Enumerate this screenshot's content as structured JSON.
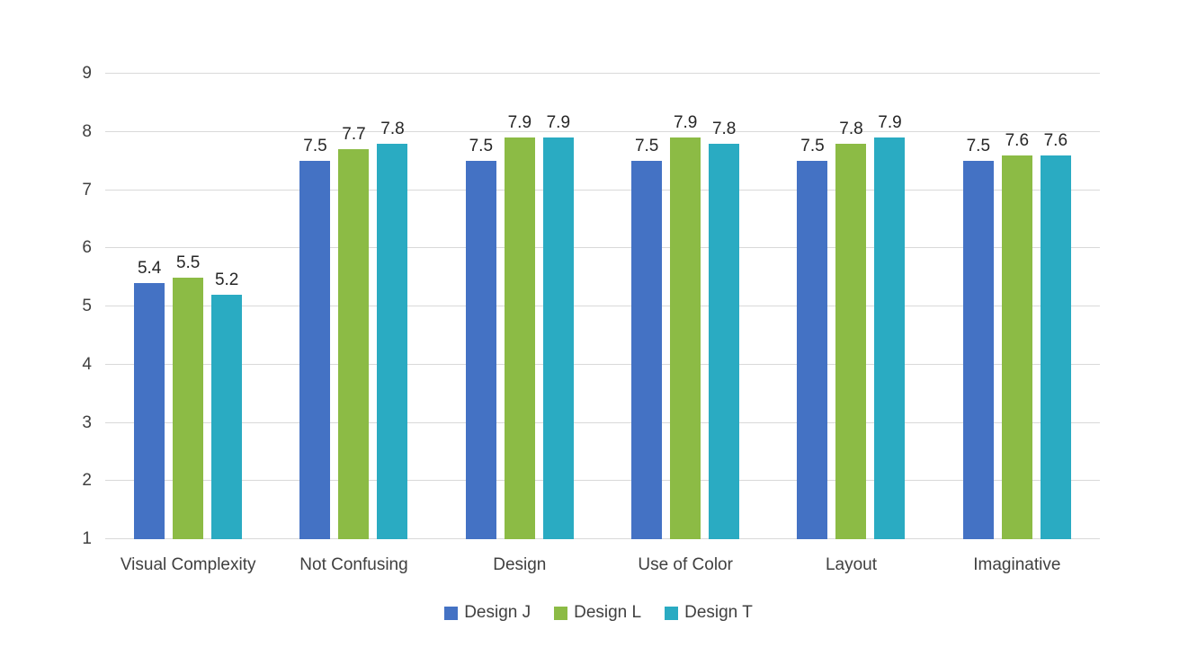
{
  "chart_data": {
    "type": "bar",
    "title": "",
    "xlabel": "",
    "ylabel": "",
    "categories": [
      "Visual Complexity",
      "Not Confusing",
      "Design",
      "Use of Color",
      "Layout",
      "Imaginative"
    ],
    "series": [
      {
        "name": "Design J",
        "color": "#4472C4",
        "values": [
          5.4,
          7.5,
          7.5,
          7.5,
          7.5,
          7.5
        ]
      },
      {
        "name": "Design L",
        "color": "#8CBB45",
        "values": [
          5.5,
          7.7,
          7.9,
          7.9,
          7.8,
          7.6
        ]
      },
      {
        "name": "Design T",
        "color": "#2AABC2",
        "values": [
          5.2,
          7.8,
          7.9,
          7.8,
          7.9,
          7.6
        ]
      }
    ],
    "ylim": [
      1,
      9
    ],
    "yticks": [
      1,
      2,
      3,
      4,
      5,
      6,
      7,
      8,
      9
    ],
    "grid": true,
    "data_labels": true,
    "legend_position": "bottom"
  },
  "styles": {
    "background": "#FFFFFF",
    "gridline_color": "#D9D9D9",
    "axis_label_color": "#404040",
    "data_label_color": "#262626"
  }
}
